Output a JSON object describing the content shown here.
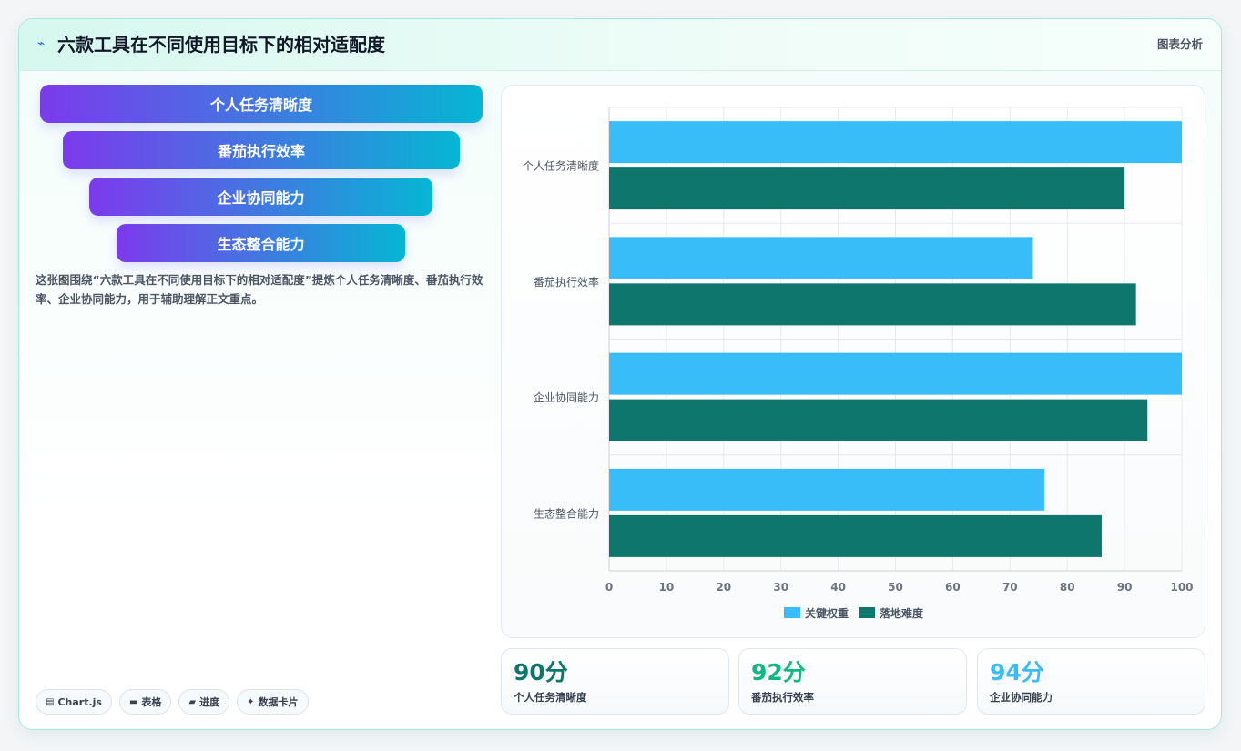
{
  "header": {
    "title": "六款工具在不同使用目标下的相对适配度",
    "analysis_label": "图表分析",
    "bolt_icon": "bolt-icon"
  },
  "funnel": {
    "steps": [
      "个人任务清晰度",
      "番茄执行效率",
      "企业协同能力",
      "生态整合能力"
    ],
    "gradient": [
      "#7c3aed",
      "#06b6d4"
    ]
  },
  "description": "这张图围绕“六款工具在不同使用目标下的相对适配度”提炼个人任务清晰度、番茄执行效率、企业协同能力，用于辅助理解正文重点。",
  "tags": [
    {
      "icon": "chart-icon",
      "glyph": "▤",
      "label": "Chart.js"
    },
    {
      "icon": "table-icon",
      "glyph": "▬",
      "label": "表格"
    },
    {
      "icon": "progress-icon",
      "glyph": "▰",
      "label": "进度"
    },
    {
      "icon": "sparkle-icon",
      "glyph": "✦",
      "label": "数据卡片"
    }
  ],
  "stats": [
    {
      "value": "90分",
      "label": "个人任务清晰度",
      "color": "#0f766e"
    },
    {
      "value": "92分",
      "label": "番茄执行效率",
      "color": "#10b981"
    },
    {
      "value": "94分",
      "label": "企业协同能力",
      "color": "#38bdf8"
    }
  ],
  "chart_data": {
    "type": "bar",
    "orientation": "horizontal",
    "categories": [
      "个人任务清晰度",
      "番茄执行效率",
      "企业协同能力",
      "生态整合能力"
    ],
    "series": [
      {
        "name": "关键权重",
        "color": "#38bdf8",
        "values": [
          100,
          74,
          100,
          76
        ]
      },
      {
        "name": "落地难度",
        "color": "#0f766e",
        "values": [
          90,
          92,
          94,
          86
        ]
      }
    ],
    "xlim": [
      0,
      100
    ],
    "xticks": [
      0,
      10,
      20,
      30,
      40,
      50,
      60,
      70,
      80,
      90,
      100
    ],
    "grid": true,
    "legend": "bottom"
  }
}
